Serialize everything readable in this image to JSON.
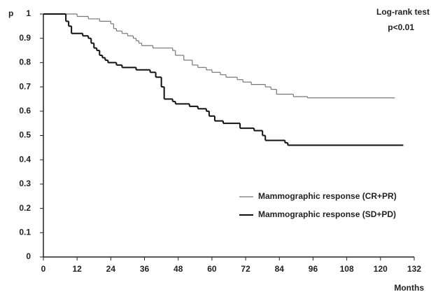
{
  "chart_data": {
    "type": "step",
    "y_label": "p",
    "x_label": "Months",
    "annotations": [
      "Log-rank test",
      "p<0.01"
    ],
    "xlim": [
      0,
      132
    ],
    "xticks": [
      0,
      12,
      24,
      36,
      48,
      60,
      72,
      84,
      96,
      108,
      120,
      132
    ],
    "ylim": [
      0,
      1
    ],
    "yticks": [
      0,
      0.1,
      0.2,
      0.3,
      0.4,
      0.5,
      0.6,
      0.7,
      0.8,
      0.9,
      1
    ],
    "series": [
      {
        "name": "Mammographic response (CR+PR)",
        "color": "#777777",
        "width": 1.2,
        "x": [
          0,
          12,
          16,
          20,
          24,
          25,
          26,
          28,
          30,
          32,
          33,
          34,
          35,
          39,
          46,
          47,
          50,
          53,
          55,
          58,
          60,
          63,
          65,
          69,
          71,
          74,
          79,
          81,
          83,
          89,
          94,
          125
        ],
        "values": [
          1,
          0.99,
          0.98,
          0.97,
          0.96,
          0.94,
          0.93,
          0.92,
          0.91,
          0.9,
          0.89,
          0.88,
          0.87,
          0.86,
          0.85,
          0.83,
          0.81,
          0.79,
          0.78,
          0.77,
          0.76,
          0.75,
          0.74,
          0.73,
          0.72,
          0.71,
          0.7,
          0.69,
          0.67,
          0.66,
          0.655,
          0.655
        ]
      },
      {
        "name": "Mammographic response  (SD+PD)",
        "color": "#111111",
        "width": 2,
        "x": [
          0,
          8,
          9,
          10,
          14,
          16,
          17,
          18,
          19,
          20,
          21,
          22,
          23,
          26,
          28,
          33,
          38,
          40,
          42,
          43,
          46,
          47,
          52,
          55,
          58,
          59,
          61,
          64,
          70,
          75,
          78,
          79,
          86,
          87,
          128
        ],
        "values": [
          1,
          0.97,
          0.95,
          0.92,
          0.91,
          0.9,
          0.88,
          0.86,
          0.85,
          0.83,
          0.82,
          0.81,
          0.8,
          0.79,
          0.78,
          0.77,
          0.76,
          0.74,
          0.7,
          0.65,
          0.64,
          0.63,
          0.62,
          0.61,
          0.6,
          0.58,
          0.56,
          0.55,
          0.53,
          0.52,
          0.5,
          0.48,
          0.47,
          0.46,
          0.46
        ]
      }
    ]
  }
}
